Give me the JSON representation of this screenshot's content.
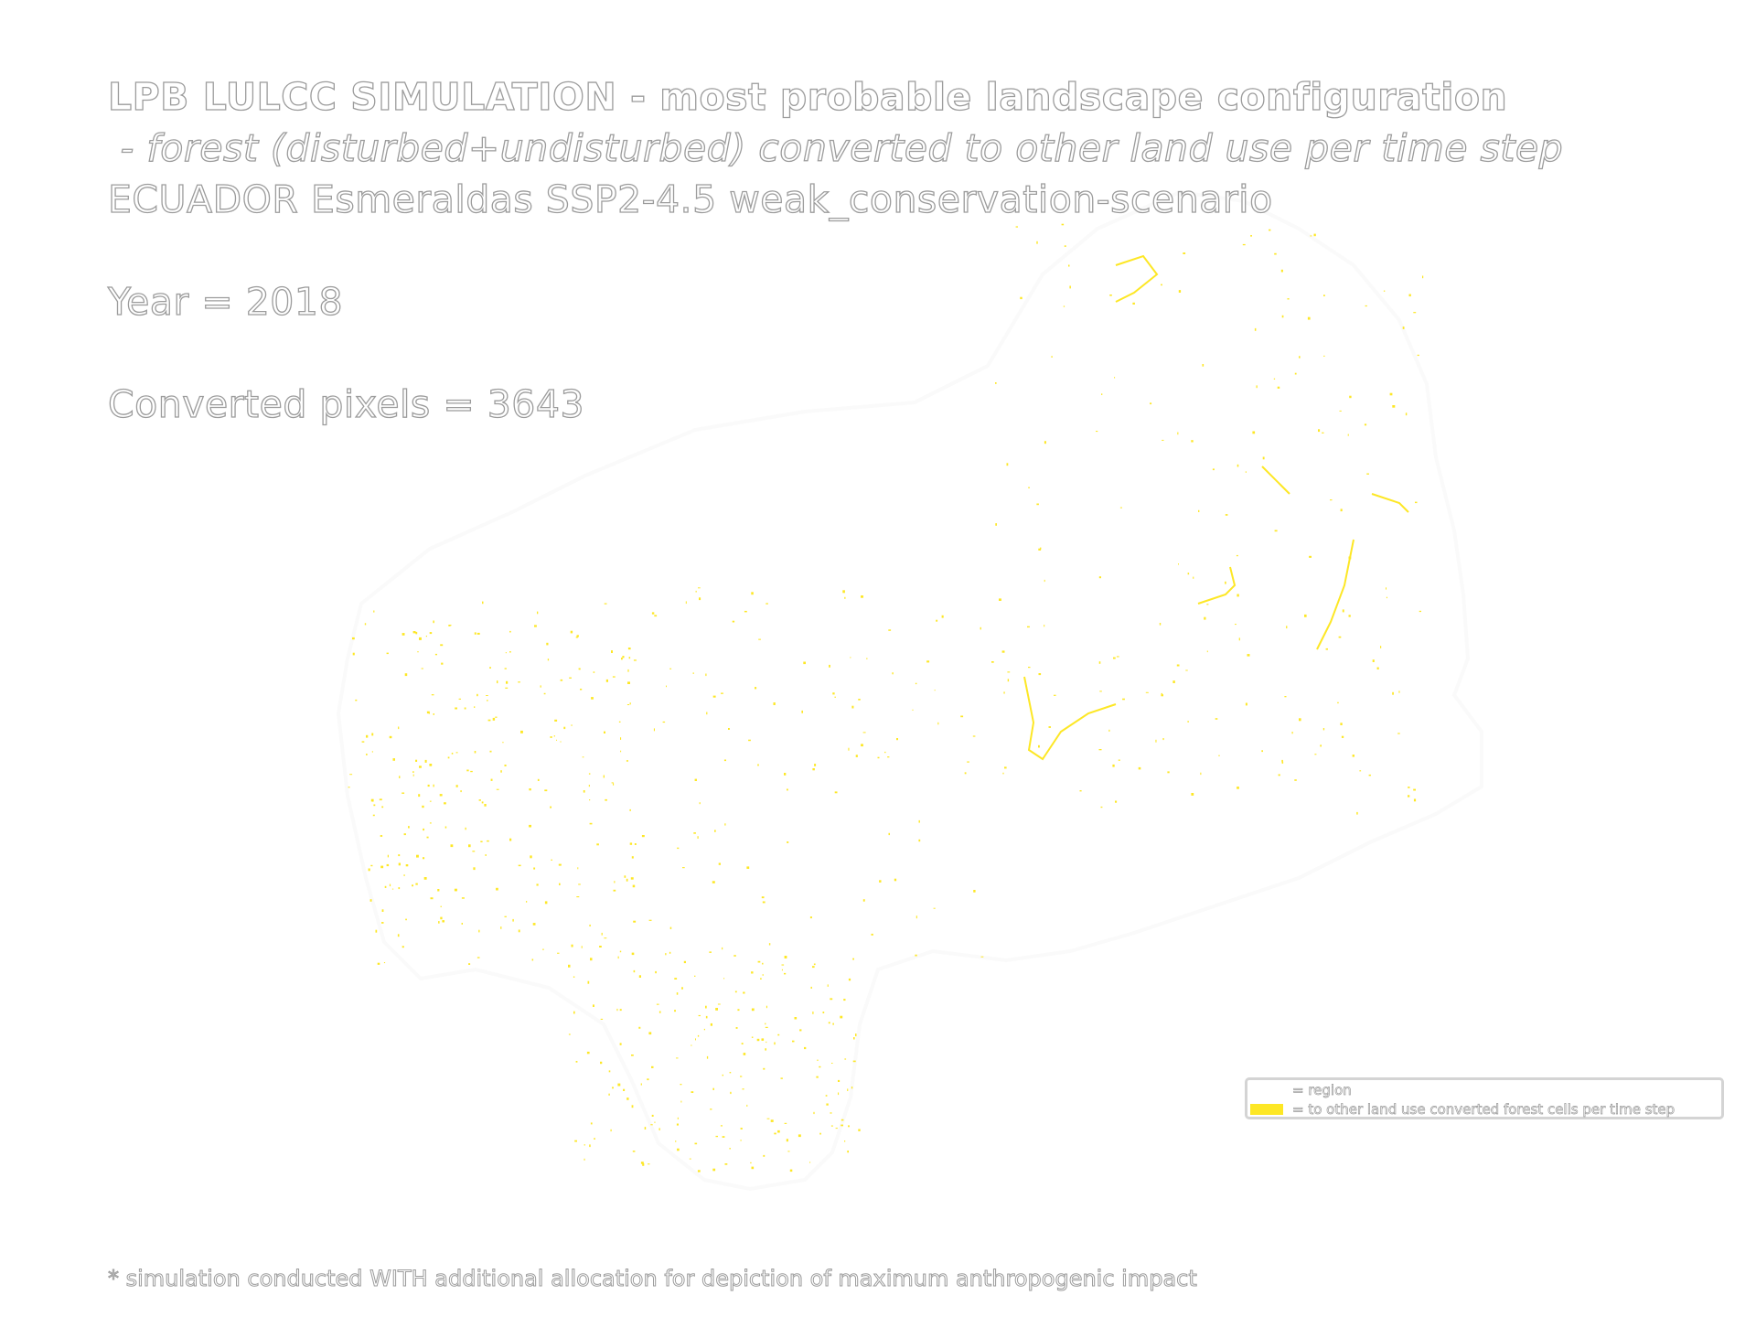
{
  "title": {
    "line1": "LPB LULCC SIMULATION - most probable landscape configuration",
    "line2": " - forest (disturbed+undisturbed) converted to other land use per time step",
    "line3": "ECUADOR Esmeraldas SSP2-4.5 weak_conservation-scenario"
  },
  "year_text": "Year = 2018",
  "converted_text": "Converted pixels = 3643",
  "legend": {
    "items": [
      {
        "label": "= region",
        "color": "#ffffff"
      },
      {
        "label": "= to other land use converted forest cells per time step",
        "color": "#fde725"
      }
    ]
  },
  "footnote": "* simulation conducted WITH additional allocation for depiction of maximum anthropogenic impact",
  "colors": {
    "region": "#ffffff",
    "converted": "#fde725",
    "background": "#ffffff"
  }
}
